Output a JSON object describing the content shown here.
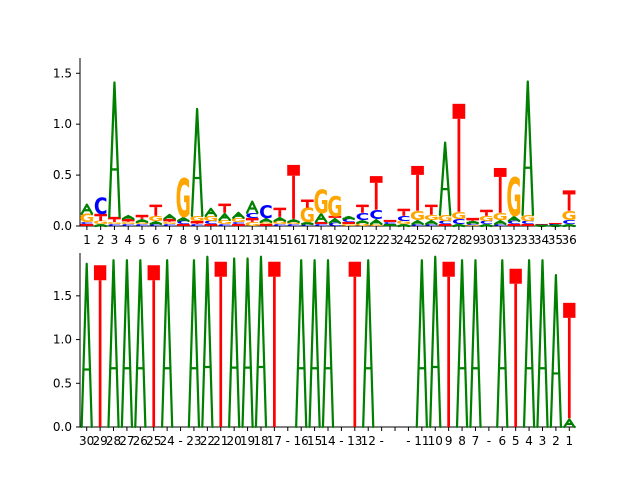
{
  "colors": {
    "A": "#008000",
    "C": "#0000ff",
    "G": "#ffa500",
    "T": "#ff0000",
    "axis": "#000000"
  },
  "chart_data": [
    {
      "type": "sequence-logo",
      "title": "",
      "xlabel": "",
      "ylabel": "",
      "ylim": [
        0,
        1.65
      ],
      "yticks": [
        "0.0",
        "0.5",
        "1.0",
        "1.5"
      ],
      "xtick_labels": [
        "1",
        "2",
        "3",
        "4",
        "5",
        "6",
        "7",
        "8",
        "9",
        "10",
        "11",
        "12",
        "13",
        "14",
        "15",
        "16",
        "17",
        "18",
        "19",
        "20",
        "21",
        "22",
        "23",
        "24",
        "25",
        "26",
        "27",
        "28",
        "29",
        "30",
        "31",
        "32",
        "33",
        "34",
        "35",
        "36"
      ],
      "positions": [
        {
          "x": "1",
          "letters": [
            [
              "T",
              0.02
            ],
            [
              "C",
              0.02
            ],
            [
              "G",
              0.08
            ],
            [
              "A",
              0.1
            ]
          ]
        },
        {
          "x": "2",
          "letters": [
            [
              "A",
              0.02
            ],
            [
              "G",
              0.03
            ],
            [
              "T",
              0.07
            ],
            [
              "C",
              0.16
            ]
          ]
        },
        {
          "x": "3",
          "letters": [
            [
              "C",
              0.02
            ],
            [
              "G",
              0.02
            ],
            [
              "T",
              0.05
            ],
            [
              "A",
              1.33
            ]
          ]
        },
        {
          "x": "4",
          "letters": [
            [
              "C",
              0.02
            ],
            [
              "G",
              0.02
            ],
            [
              "T",
              0.03
            ],
            [
              "A",
              0.04
            ]
          ]
        },
        {
          "x": "5",
          "letters": [
            [
              "C",
              0.02
            ],
            [
              "G",
              0.02
            ],
            [
              "A",
              0.03
            ],
            [
              "T",
              0.04
            ]
          ]
        },
        {
          "x": "6",
          "letters": [
            [
              "C",
              0.02
            ],
            [
              "A",
              0.03
            ],
            [
              "G",
              0.05
            ],
            [
              "T",
              0.11
            ]
          ]
        },
        {
          "x": "7",
          "letters": [
            [
              "C",
              0.02
            ],
            [
              "G",
              0.02
            ],
            [
              "T",
              0.03
            ],
            [
              "A",
              0.05
            ]
          ]
        },
        {
          "x": "8",
          "letters": [
            [
              "T",
              0.02
            ],
            [
              "C",
              0.03
            ],
            [
              "A",
              0.04
            ],
            [
              "G",
              0.38
            ]
          ]
        },
        {
          "x": "9",
          "letters": [
            [
              "C",
              0.02
            ],
            [
              "T",
              0.03
            ],
            [
              "G",
              0.05
            ],
            [
              "A",
              1.06
            ]
          ]
        },
        {
          "x": "10",
          "letters": [
            [
              "T",
              0.02
            ],
            [
              "C",
              0.03
            ],
            [
              "G",
              0.05
            ],
            [
              "A",
              0.08
            ]
          ]
        },
        {
          "x": "11",
          "letters": [
            [
              "C",
              0.02
            ],
            [
              "G",
              0.04
            ],
            [
              "A",
              0.07
            ],
            [
              "T",
              0.09
            ]
          ]
        },
        {
          "x": "12",
          "letters": [
            [
              "T",
              0.02
            ],
            [
              "C",
              0.02
            ],
            [
              "G",
              0.04
            ],
            [
              "A",
              0.06
            ]
          ]
        },
        {
          "x": "13",
          "letters": [
            [
              "G",
              0.04
            ],
            [
              "T",
              0.04
            ],
            [
              "C",
              0.05
            ],
            [
              "A",
              0.12
            ]
          ]
        },
        {
          "x": "14",
          "letters": [
            [
              "T",
              0.02
            ],
            [
              "G",
              0.02
            ],
            [
              "A",
              0.04
            ],
            [
              "C",
              0.13
            ]
          ]
        },
        {
          "x": "15",
          "letters": [
            [
              "C",
              0.02
            ],
            [
              "G",
              0.03
            ],
            [
              "A",
              0.04
            ],
            [
              "T",
              0.09
            ]
          ]
        },
        {
          "x": "16",
          "letters": [
            [
              "C",
              0.02
            ],
            [
              "G",
              0.02
            ],
            [
              "A",
              0.03
            ],
            [
              "T",
              0.53
            ]
          ]
        },
        {
          "x": "17",
          "letters": [
            [
              "C",
              0.02
            ],
            [
              "A",
              0.02
            ],
            [
              "G",
              0.14
            ],
            [
              "T",
              0.08
            ]
          ]
        },
        {
          "x": "18",
          "letters": [
            [
              "C",
              0.02
            ],
            [
              "T",
              0.02
            ],
            [
              "A",
              0.09
            ],
            [
              "G",
              0.23
            ]
          ]
        },
        {
          "x": "19",
          "letters": [
            [
              "C",
              0.03
            ],
            [
              "A",
              0.05
            ],
            [
              "T",
              0.02
            ],
            [
              "G",
              0.2
            ]
          ]
        },
        {
          "x": "20",
          "letters": [
            [
              "G",
              0.02
            ],
            [
              "T",
              0.02
            ],
            [
              "C",
              0.03
            ],
            [
              "A",
              0.03
            ]
          ]
        },
        {
          "x": "21",
          "letters": [
            [
              "G",
              0.03
            ],
            [
              "A",
              0.03
            ],
            [
              "C",
              0.07
            ],
            [
              "T",
              0.08
            ]
          ]
        },
        {
          "x": "22",
          "letters": [
            [
              "G",
              0.02
            ],
            [
              "A",
              0.05
            ],
            [
              "C",
              0.09
            ],
            [
              "T",
              0.33
            ]
          ]
        },
        {
          "x": "23",
          "letters": [
            [
              "G",
              0.01
            ],
            [
              "A",
              0.01
            ],
            [
              "C",
              0.02
            ],
            [
              "T",
              0.02
            ]
          ]
        },
        {
          "x": "24",
          "letters": [
            [
              "A",
              0.02
            ],
            [
              "G",
              0.03
            ],
            [
              "C",
              0.05
            ],
            [
              "T",
              0.07
            ]
          ]
        },
        {
          "x": "25",
          "letters": [
            [
              "C",
              0.02
            ],
            [
              "A",
              0.04
            ],
            [
              "G",
              0.09
            ],
            [
              "T",
              0.44
            ]
          ]
        },
        {
          "x": "26",
          "letters": [
            [
              "C",
              0.02
            ],
            [
              "A",
              0.04
            ],
            [
              "G",
              0.05
            ],
            [
              "T",
              0.1
            ]
          ]
        },
        {
          "x": "27",
          "letters": [
            [
              "T",
              0.02
            ],
            [
              "C",
              0.03
            ],
            [
              "G",
              0.06
            ],
            [
              "A",
              0.72
            ]
          ]
        },
        {
          "x": "28",
          "letters": [
            [
              "A",
              0.02
            ],
            [
              "C",
              0.05
            ],
            [
              "G",
              0.07
            ],
            [
              "T",
              1.06
            ]
          ]
        },
        {
          "x": "29",
          "letters": [
            [
              "G",
              0.01
            ],
            [
              "C",
              0.02
            ],
            [
              "A",
              0.02
            ],
            [
              "T",
              0.03
            ]
          ]
        },
        {
          "x": "30",
          "letters": [
            [
              "A",
              0.02
            ],
            [
              "C",
              0.03
            ],
            [
              "G",
              0.05
            ],
            [
              "T",
              0.06
            ]
          ]
        },
        {
          "x": "31",
          "letters": [
            [
              "C",
              0.02
            ],
            [
              "A",
              0.04
            ],
            [
              "G",
              0.07
            ],
            [
              "T",
              0.44
            ]
          ]
        },
        {
          "x": "32",
          "letters": [
            [
              "T",
              0.02
            ],
            [
              "C",
              0.03
            ],
            [
              "A",
              0.05
            ],
            [
              "G",
              0.38
            ]
          ]
        },
        {
          "x": "33",
          "letters": [
            [
              "T",
              0.02
            ],
            [
              "C",
              0.03
            ],
            [
              "G",
              0.06
            ],
            [
              "A",
              1.32
            ]
          ]
        },
        {
          "x": "34",
          "letters": [
            [
              "G",
              0.005
            ],
            [
              "A",
              0.005
            ],
            [
              "C",
              0.005
            ],
            [
              "T",
              0.005
            ]
          ]
        },
        {
          "x": "35",
          "letters": [
            [
              "G",
              0.005
            ],
            [
              "A",
              0.005
            ],
            [
              "C",
              0.01
            ],
            [
              "T",
              0.01
            ]
          ]
        },
        {
          "x": "36",
          "letters": [
            [
              "A",
              0.02
            ],
            [
              "C",
              0.04
            ],
            [
              "G",
              0.09
            ],
            [
              "T",
              0.2
            ]
          ]
        }
      ]
    },
    {
      "type": "sequence-logo",
      "title": "",
      "xlabel": "",
      "ylabel": "",
      "ylim": [
        0,
        1.99
      ],
      "yticks": [
        "0.0",
        "0.5",
        "1.0",
        "1.5"
      ],
      "xtick_labels": [
        "30",
        "29",
        "28",
        "27",
        "26",
        "25",
        "24",
        "-",
        "23",
        "22",
        "21",
        "20",
        "19",
        "18",
        "17",
        "-",
        "16",
        "15",
        "14",
        "-",
        "13",
        "12",
        "-",
        "",
        "-",
        "11",
        "10",
        "9",
        "8",
        "7",
        "-",
        "6",
        "5",
        "4",
        "3",
        "2",
        "1"
      ],
      "positions": [
        {
          "x": "30",
          "letters": [
            [
              "A",
              1.88
            ]
          ]
        },
        {
          "x": "29",
          "letters": [
            [
              "T",
              1.85
            ]
          ]
        },
        {
          "x": "28",
          "letters": [
            [
              "A",
              1.92
            ]
          ]
        },
        {
          "x": "27",
          "letters": [
            [
              "A",
              1.92
            ]
          ]
        },
        {
          "x": "26",
          "letters": [
            [
              "A",
              1.92
            ]
          ]
        },
        {
          "x": "25",
          "letters": [
            [
              "T",
              1.85
            ]
          ]
        },
        {
          "x": "24",
          "letters": [
            [
              "A",
              1.92
            ]
          ]
        },
        {
          "x": "-",
          "letters": []
        },
        {
          "x": "23",
          "letters": [
            [
              "A",
              1.92
            ]
          ]
        },
        {
          "x": "22",
          "letters": [
            [
              "A",
              1.96
            ]
          ]
        },
        {
          "x": "21",
          "letters": [
            [
              "T",
              1.89
            ]
          ]
        },
        {
          "x": "20",
          "letters": [
            [
              "A",
              1.94
            ]
          ]
        },
        {
          "x": "19",
          "letters": [
            [
              "A",
              1.94
            ]
          ]
        },
        {
          "x": "18",
          "letters": [
            [
              "A",
              1.96
            ]
          ]
        },
        {
          "x": "17",
          "letters": [
            [
              "T",
              1.89
            ]
          ]
        },
        {
          "x": "-",
          "letters": []
        },
        {
          "x": "16",
          "letters": [
            [
              "A",
              1.92
            ]
          ]
        },
        {
          "x": "15",
          "letters": [
            [
              "A",
              1.92
            ]
          ]
        },
        {
          "x": "14",
          "letters": [
            [
              "A",
              1.92
            ]
          ]
        },
        {
          "x": "-",
          "letters": []
        },
        {
          "x": "13",
          "letters": [
            [
              "T",
              1.89
            ]
          ]
        },
        {
          "x": "12",
          "letters": [
            [
              "A",
              1.92
            ]
          ]
        },
        {
          "x": "-",
          "letters": []
        },
        {
          "x": "",
          "letters": []
        },
        {
          "x": "-",
          "letters": []
        },
        {
          "x": "11",
          "letters": [
            [
              "A",
              1.92
            ]
          ]
        },
        {
          "x": "10",
          "letters": [
            [
              "A",
              1.96
            ]
          ]
        },
        {
          "x": "9",
          "letters": [
            [
              "T",
              1.89
            ]
          ]
        },
        {
          "x": "8",
          "letters": [
            [
              "A",
              1.92
            ]
          ]
        },
        {
          "x": "7",
          "letters": [
            [
              "A",
              1.92
            ]
          ]
        },
        {
          "x": "-",
          "letters": []
        },
        {
          "x": "6",
          "letters": [
            [
              "A",
              1.92
            ]
          ]
        },
        {
          "x": "5",
          "letters": [
            [
              "T",
              1.81
            ]
          ]
        },
        {
          "x": "4",
          "letters": [
            [
              "A",
              1.92
            ]
          ]
        },
        {
          "x": "3",
          "letters": [
            [
              "A",
              1.92
            ]
          ]
        },
        {
          "x": "2",
          "letters": [
            [
              "A",
              1.75
            ]
          ]
        },
        {
          "x": "1",
          "letters": [
            [
              "A",
              0.1
            ],
            [
              "T",
              1.32
            ]
          ]
        }
      ]
    }
  ]
}
